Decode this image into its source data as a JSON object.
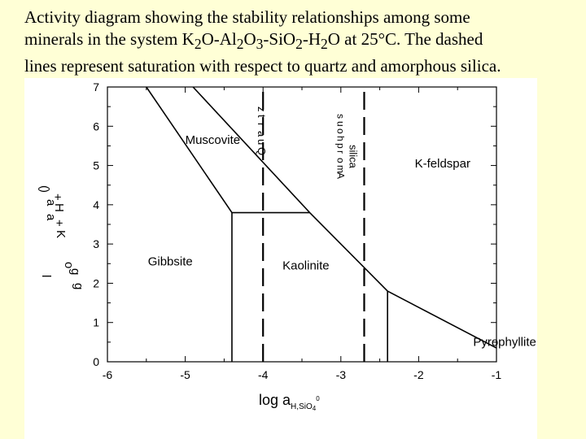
{
  "caption": {
    "line1": "Activity diagram showing the stability relationships among some",
    "line2_prefix": "minerals in the system K",
    "line2_sub1": "2",
    "line2_mid1": "O-Al",
    "line2_sub2": "2",
    "line2_mid2": "O",
    "line2_sub3": "3",
    "line2_mid3": "-SiO",
    "line2_sub4": "2",
    "line2_mid4": "-H",
    "line2_sub5": "2",
    "line2_suffix": "O at 25°C. The dashed",
    "line3": "lines represent saturation with respect to quartz and amorphous silica."
  },
  "chart_data": {
    "type": "line",
    "x_axis": {
      "range": [
        -6,
        -1
      ],
      "ticks": [
        "-6",
        "-5",
        "-4",
        "-3",
        "-2",
        "-1"
      ]
    },
    "y_axis": {
      "range": [
        0,
        7
      ],
      "ticks": [
        "0",
        "1",
        "2",
        "3",
        "4",
        "5",
        "6",
        "7"
      ]
    },
    "xlabel": {
      "main": "log a",
      "sub": "H",
      "sub2": "SiO",
      "sub3": "4",
      "sup": "0"
    },
    "ylabel_fragments": [
      "(",
      "a",
      "K",
      "+",
      "a",
      "H",
      "+",
      ")",
      "l",
      "g",
      "o",
      "g"
    ],
    "boundaries": [
      {
        "name": "muscovite-gibbsite",
        "x": [
          -5.5,
          -4.4
        ],
        "y": [
          7,
          3.8
        ]
      },
      {
        "name": "gibbsite-kaolinite",
        "x": [
          -4.4,
          -4.4
        ],
        "y": [
          3.8,
          0
        ]
      },
      {
        "name": "muscovite-kaolinite",
        "x": [
          -4.4,
          -3.4
        ],
        "y": [
          3.8,
          3.8
        ]
      },
      {
        "name": "muscovite-kfeldspar",
        "x": [
          -4.9,
          -3.4
        ],
        "y": [
          7,
          3.8
        ]
      },
      {
        "name": "kfeldspar-kaolinite",
        "x": [
          -3.4,
          -2.4
        ],
        "y": [
          3.8,
          1.8
        ]
      },
      {
        "name": "kaolinite-pyrophyllite",
        "x": [
          -2.4,
          -2.4
        ],
        "y": [
          1.8,
          0
        ]
      },
      {
        "name": "kfeldspar-pyrophyllite",
        "x": [
          -2.4,
          -1
        ],
        "y": [
          1.8,
          0.35
        ]
      }
    ],
    "saturation_lines": [
      {
        "name": "quartz",
        "x": -4.0,
        "y": [
          0,
          7
        ]
      },
      {
        "name": "amorphous-silica",
        "x": -2.7,
        "y": [
          0,
          7
        ]
      }
    ],
    "field_labels": [
      {
        "name": "Muscovite",
        "x": -5.0,
        "y": 5.55
      },
      {
        "name": "K-feldspar",
        "x": -2.05,
        "y": 4.95
      },
      {
        "name": "Gibbsite",
        "x": -5.48,
        "y": 2.45
      },
      {
        "name": "Kaolinite",
        "x": -3.75,
        "y": 2.35
      },
      {
        "name": "Pyrophyllite",
        "x": -1.3,
        "y": 0.4
      }
    ],
    "line_labels": {
      "quartz": [
        "Q",
        "u",
        "a",
        "r",
        "t",
        "z"
      ],
      "amorphous_silica": [
        "A",
        "m",
        "o",
        "r",
        "p",
        "h",
        "o",
        "u",
        "s"
      ],
      "silica_word": "silica"
    }
  }
}
